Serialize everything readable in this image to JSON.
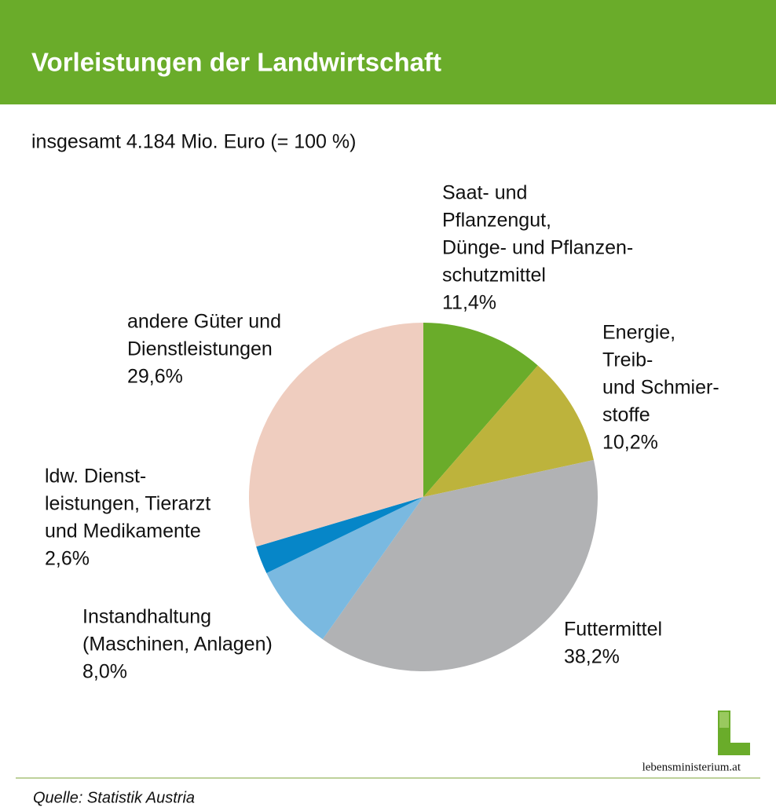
{
  "chart_data": {
    "type": "pie",
    "title": "Vorleistungen der Landwirtschaft",
    "subtitle": "insgesamt 4.184 Mio. Euro (= 100 %)",
    "categories": [
      [
        "Saat- und",
        "Pflanzengut,",
        "Dünge- und Pflanzen-",
        "schutzmittel"
      ],
      [
        "Energie,",
        "Treib-",
        "und Schmier-",
        "stoffe"
      ],
      [
        "Futtermittel"
      ],
      [
        "Instandhaltung",
        "(Maschinen, Anlagen)"
      ],
      [
        "ldw. Dienst-",
        "leistungen, Tierarzt",
        "und Medikamente"
      ],
      [
        "andere Güter und",
        "Dienstleistungen"
      ]
    ],
    "values": [
      11.4,
      10.2,
      38.2,
      8.0,
      2.6,
      29.6
    ],
    "value_labels": [
      "11,4%",
      "10,2%",
      "38,2%",
      "8,0%",
      "2,6%",
      "29,6%"
    ],
    "colors": [
      "#6aac2a",
      "#bdb33c",
      "#b1b2b4",
      "#7ab9e0",
      "#0686c8",
      "#efcdbf"
    ]
  },
  "source": "Quelle: Statistik Austria",
  "logo": "lebensministerium.at"
}
